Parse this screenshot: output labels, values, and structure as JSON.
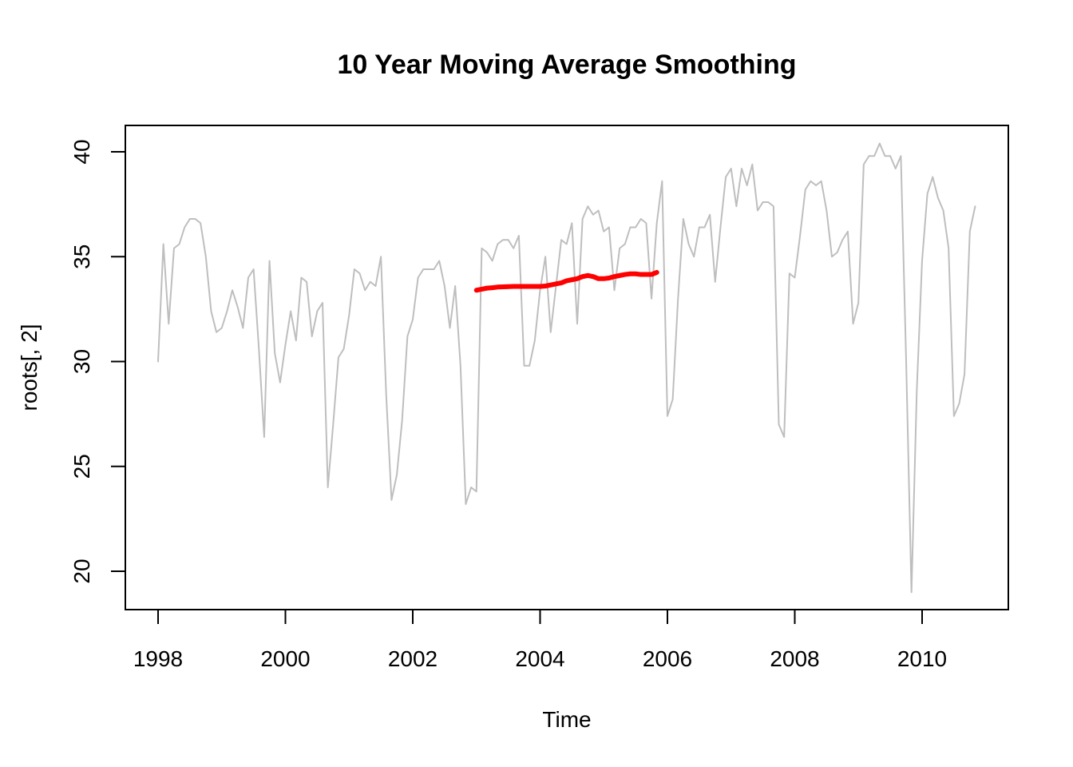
{
  "chart_data": {
    "type": "line",
    "title": "10 Year Moving Average Smoothing",
    "xlabel": "Time",
    "ylabel": "roots[, 2]",
    "xlim": [
      1998,
      2011
    ],
    "ylim": [
      18.8,
      41.3
    ],
    "grid": false,
    "x_ticks": [
      "1998",
      "2000",
      "2002",
      "2004",
      "2006",
      "2008",
      "2010"
    ],
    "y_ticks": [
      "20",
      "25",
      "30",
      "35",
      "40"
    ],
    "x_start": 1998.0,
    "x_step": 0.08333,
    "series": [
      {
        "name": "",
        "color": "#bebebe",
        "values": [
          30.0,
          35.6,
          31.8,
          35.4,
          35.6,
          36.4,
          36.8,
          36.8,
          36.6,
          35.0,
          32.4,
          31.4,
          31.6,
          32.4,
          33.4,
          32.6,
          31.6,
          34.0,
          34.4,
          30.6,
          26.4,
          34.8,
          30.4,
          29.0,
          30.8,
          32.4,
          31.0,
          34.0,
          33.8,
          31.2,
          32.4,
          32.8,
          24.0,
          27.0,
          30.2,
          30.6,
          32.2,
          34.4,
          34.2,
          33.4,
          33.8,
          33.6,
          35.0,
          28.4,
          23.4,
          24.6,
          27.2,
          31.2,
          32.0,
          34.0,
          34.4,
          34.4,
          34.4,
          34.8,
          33.6,
          31.6,
          33.6,
          29.8,
          23.2,
          24.0,
          23.8,
          35.4,
          35.2,
          34.8,
          35.6,
          35.8,
          35.8,
          35.4,
          36.0,
          29.8,
          29.8,
          31.0,
          33.4,
          35.0,
          31.4,
          33.6,
          35.8,
          35.6,
          36.6,
          31.8,
          36.8,
          37.4,
          37.0,
          37.2,
          36.2,
          36.4,
          33.4,
          35.4,
          35.6,
          36.4,
          36.4,
          36.8,
          36.6,
          33.0,
          36.6,
          38.6,
          27.4,
          28.2,
          33.0,
          36.8,
          35.6,
          35.0,
          36.4,
          36.4,
          37.0,
          33.8,
          36.4,
          38.8,
          39.2,
          37.4,
          39.2,
          38.4,
          39.4,
          37.2,
          37.6,
          37.6,
          37.4,
          27.0,
          26.4,
          34.2,
          34.0,
          36.0,
          38.2,
          38.6,
          38.4,
          38.6,
          37.2,
          35.0,
          35.2,
          35.8,
          36.2,
          31.8,
          32.8,
          39.4,
          39.8,
          39.8,
          40.4,
          39.8,
          39.8,
          39.2,
          39.8,
          30.0,
          19.0,
          28.6,
          34.8,
          38.0,
          38.8,
          37.8,
          37.2,
          35.4,
          27.4,
          28.0,
          29.4,
          36.2,
          37.4
        ]
      },
      {
        "name": "",
        "color": "#ff0000",
        "start": 2003.0,
        "values": [
          33.4,
          33.45,
          33.5,
          33.52,
          33.55,
          33.56,
          33.57,
          33.58,
          33.58,
          33.58,
          33.58,
          33.58,
          33.58,
          33.6,
          33.65,
          33.7,
          33.75,
          33.85,
          33.9,
          33.95,
          34.05,
          34.1,
          34.05,
          33.95,
          33.95,
          33.98,
          34.05,
          34.1,
          34.15,
          34.18,
          34.18,
          34.15,
          34.15,
          34.15,
          34.25
        ]
      }
    ]
  }
}
